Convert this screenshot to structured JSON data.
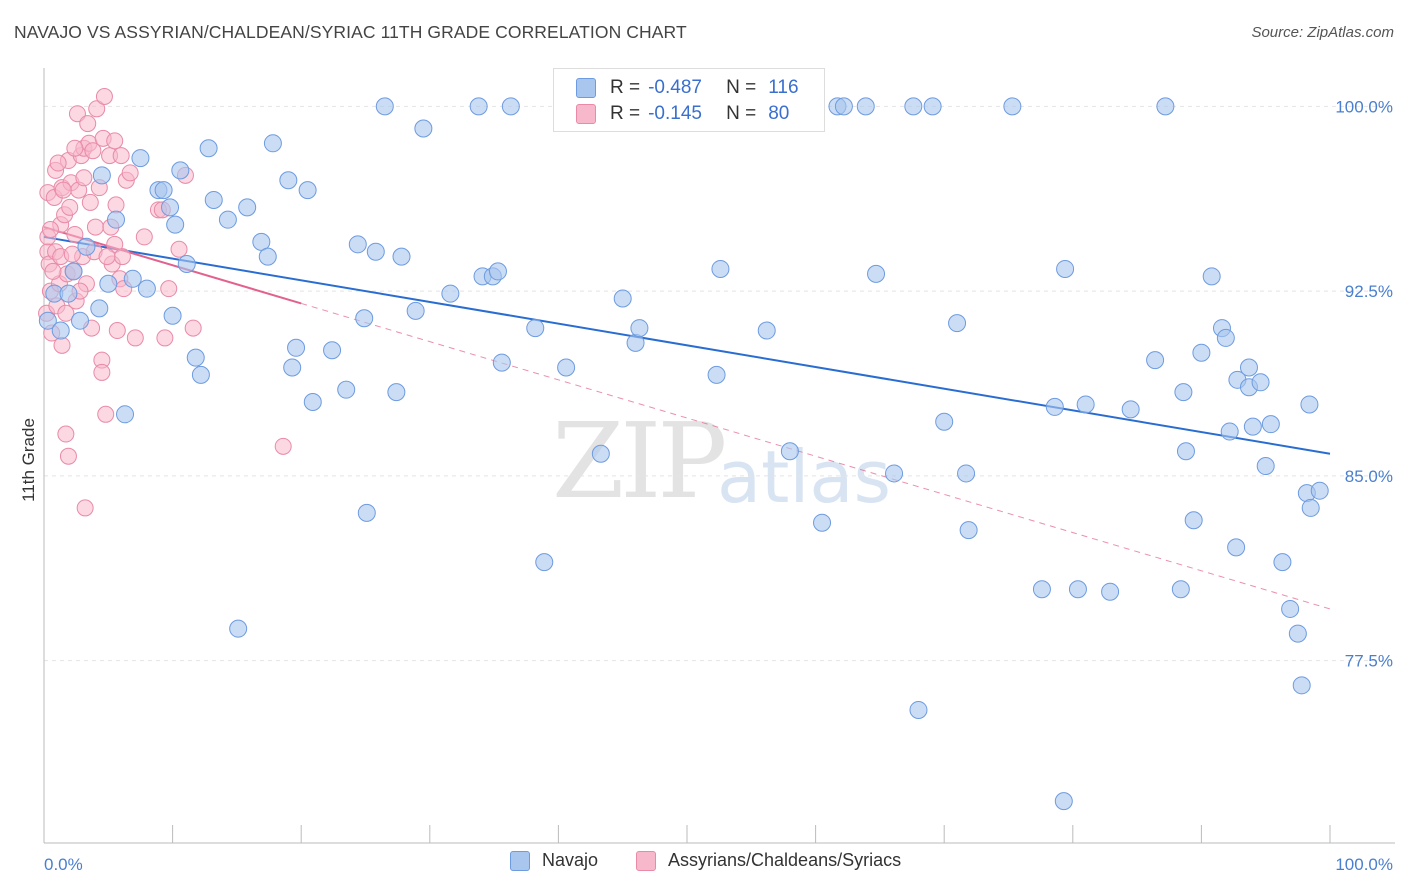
{
  "title": "NAVAJO VS ASSYRIAN/CHALDEAN/SYRIAC 11TH GRADE CORRELATION CHART",
  "source": "Source: ZipAtlas.com",
  "watermark": {
    "zip": "ZIP",
    "atlas": "atlas"
  },
  "legend": {
    "navajo": {
      "r_label": "R =",
      "r_value": "-0.487",
      "n_label": "N =",
      "n_value": "116"
    },
    "assyrian": {
      "r_label": "R =",
      "r_value": "-0.145",
      "n_label": "N =",
      "n_value": "80"
    }
  },
  "bottom_legend": {
    "navajo": "Navajo",
    "assyrian": "Assyrians/Chaldeans/Syriacs"
  },
  "colors": {
    "navajo_fill": "#a9c6ee",
    "navajo_stroke": "#6d9be0",
    "navajo_line": "#2a6dd1",
    "assyrian_fill": "#f7b8cb",
    "assyrian_stroke": "#e98aa8",
    "assyrian_line": "#e2618d",
    "grid": "#e4e4e4",
    "axis_label": "#4a7fcf"
  },
  "chart_data": {
    "type": "scatter",
    "title": "NAVAJO VS ASSYRIAN/CHALDEAN/SYRIAC 11TH GRADE CORRELATION CHART",
    "xlabel": "",
    "ylabel": "11th Grade",
    "xlim": [
      0,
      100
    ],
    "ylim": [
      70.1,
      101.8
    ],
    "y_ticks": [
      77.5,
      85.0,
      92.5,
      100.0
    ],
    "y_tick_labels": [
      "77.5%",
      "85.0%",
      "92.5%",
      "100.0%"
    ],
    "x_tick_labels": [
      "0.0%",
      "100.0%"
    ],
    "series": [
      {
        "name": "Navajo",
        "R": -0.487,
        "N": 116,
        "trend": {
          "x": [
            0,
            100
          ],
          "y": [
            94.7,
            85.9
          ]
        },
        "points": [
          [
            0.3,
            91.3
          ],
          [
            0.8,
            92.4
          ],
          [
            1.3,
            90.9
          ],
          [
            1.9,
            92.4
          ],
          [
            2.3,
            93.3
          ],
          [
            2.8,
            91.3
          ],
          [
            3.3,
            94.3
          ],
          [
            4.3,
            91.8
          ],
          [
            4.5,
            97.2
          ],
          [
            5.0,
            92.8
          ],
          [
            5.6,
            95.4
          ],
          [
            6.3,
            87.5
          ],
          [
            6.9,
            93.0
          ],
          [
            7.5,
            97.9
          ],
          [
            8.0,
            92.6
          ],
          [
            8.9,
            96.6
          ],
          [
            9.3,
            96.6
          ],
          [
            9.8,
            95.9
          ],
          [
            10.2,
            95.2
          ],
          [
            10.0,
            91.5
          ],
          [
            10.6,
            97.4
          ],
          [
            11.1,
            93.6
          ],
          [
            11.8,
            89.8
          ],
          [
            12.2,
            89.1
          ],
          [
            12.8,
            98.3
          ],
          [
            13.2,
            96.2
          ],
          [
            14.3,
            95.4
          ],
          [
            15.1,
            78.8
          ],
          [
            15.8,
            95.9
          ],
          [
            16.9,
            94.5
          ],
          [
            17.4,
            93.9
          ],
          [
            17.8,
            98.5
          ],
          [
            19.0,
            97.0
          ],
          [
            19.3,
            89.4
          ],
          [
            19.6,
            90.2
          ],
          [
            20.5,
            96.6
          ],
          [
            20.9,
            88.0
          ],
          [
            22.4,
            90.1
          ],
          [
            23.5,
            88.5
          ],
          [
            24.4,
            94.4
          ],
          [
            24.9,
            91.4
          ],
          [
            25.1,
            83.5
          ],
          [
            25.8,
            94.1
          ],
          [
            26.5,
            100.0
          ],
          [
            27.4,
            88.4
          ],
          [
            27.8,
            93.9
          ],
          [
            28.9,
            91.7
          ],
          [
            29.5,
            99.1
          ],
          [
            31.6,
            92.4
          ],
          [
            33.8,
            100.0
          ],
          [
            34.1,
            93.1
          ],
          [
            34.9,
            93.1
          ],
          [
            35.3,
            93.3
          ],
          [
            35.6,
            89.6
          ],
          [
            36.3,
            100.0
          ],
          [
            38.2,
            91.0
          ],
          [
            38.9,
            81.5
          ],
          [
            40.6,
            89.4
          ],
          [
            43.3,
            85.9
          ],
          [
            45.0,
            92.2
          ],
          [
            46.0,
            90.4
          ],
          [
            46.3,
            91.0
          ],
          [
            52.3,
            89.1
          ],
          [
            52.6,
            93.4
          ],
          [
            54.1,
            100.0
          ],
          [
            56.2,
            90.9
          ],
          [
            58.0,
            86.0
          ],
          [
            60.5,
            83.1
          ],
          [
            61.7,
            100.0
          ],
          [
            62.2,
            100.0
          ],
          [
            63.9,
            100.0
          ],
          [
            64.7,
            93.2
          ],
          [
            66.1,
            85.1
          ],
          [
            67.6,
            100.0
          ],
          [
            68.0,
            75.5
          ],
          [
            69.1,
            100.0
          ],
          [
            70.0,
            87.2
          ],
          [
            71.0,
            91.2
          ],
          [
            71.7,
            85.1
          ],
          [
            71.9,
            82.8
          ],
          [
            75.3,
            100.0
          ],
          [
            77.6,
            80.4
          ],
          [
            78.6,
            87.8
          ],
          [
            79.3,
            71.8
          ],
          [
            79.4,
            93.4
          ],
          [
            80.4,
            80.4
          ],
          [
            81.0,
            87.9
          ],
          [
            82.9,
            80.3
          ],
          [
            84.5,
            87.7
          ],
          [
            86.4,
            89.7
          ],
          [
            87.2,
            100.0
          ],
          [
            88.4,
            80.4
          ],
          [
            88.6,
            88.4
          ],
          [
            88.8,
            86.0
          ],
          [
            89.4,
            83.2
          ],
          [
            90.0,
            90.0
          ],
          [
            90.8,
            93.1
          ],
          [
            91.6,
            91.0
          ],
          [
            91.9,
            90.6
          ],
          [
            92.2,
            86.8
          ],
          [
            92.7,
            82.1
          ],
          [
            92.8,
            88.9
          ],
          [
            93.7,
            88.6
          ],
          [
            93.7,
            89.4
          ],
          [
            94.0,
            87.0
          ],
          [
            95.0,
            85.4
          ],
          [
            95.4,
            87.1
          ],
          [
            96.3,
            81.5
          ],
          [
            96.9,
            79.6
          ],
          [
            97.5,
            78.6
          ],
          [
            97.8,
            76.5
          ],
          [
            98.2,
            84.3
          ],
          [
            98.4,
            87.9
          ],
          [
            98.5,
            83.7
          ],
          [
            99.2,
            84.4
          ],
          [
            94.6,
            88.8
          ]
        ]
      },
      {
        "name": "Assyrians/Chaldeans/Syriacs",
        "R": -0.145,
        "N": 80,
        "trend": {
          "x": [
            0,
            20
          ],
          "y": [
            95.1,
            92.0
          ]
        },
        "trend_dashed": {
          "x": [
            20,
            100
          ],
          "y": [
            92.0,
            79.6
          ]
        },
        "points": [
          [
            0.2,
            91.6
          ],
          [
            0.3,
            94.1
          ],
          [
            0.3,
            94.7
          ],
          [
            0.3,
            96.5
          ],
          [
            0.4,
            93.6
          ],
          [
            0.5,
            92.5
          ],
          [
            0.6,
            90.8
          ],
          [
            0.8,
            96.3
          ],
          [
            0.9,
            94.1
          ],
          [
            0.9,
            97.4
          ],
          [
            1.0,
            91.9
          ],
          [
            1.2,
            92.8
          ],
          [
            1.3,
            93.9
          ],
          [
            1.3,
            95.2
          ],
          [
            1.4,
            90.3
          ],
          [
            1.4,
            96.7
          ],
          [
            1.6,
            95.6
          ],
          [
            1.7,
            86.7
          ],
          [
            1.7,
            91.6
          ],
          [
            1.8,
            93.2
          ],
          [
            1.9,
            85.8
          ],
          [
            1.9,
            97.8
          ],
          [
            2.1,
            96.9
          ],
          [
            2.3,
            93.3
          ],
          [
            2.4,
            94.8
          ],
          [
            2.5,
            92.1
          ],
          [
            2.6,
            99.7
          ],
          [
            2.7,
            96.6
          ],
          [
            2.9,
            98.0
          ],
          [
            3.0,
            93.9
          ],
          [
            3.1,
            98.3
          ],
          [
            3.1,
            97.1
          ],
          [
            3.2,
            83.7
          ],
          [
            3.3,
            92.8
          ],
          [
            3.4,
            99.3
          ],
          [
            3.5,
            98.5
          ],
          [
            3.6,
            96.1
          ],
          [
            3.7,
            91.0
          ],
          [
            3.8,
            98.2
          ],
          [
            4.0,
            95.1
          ],
          [
            4.1,
            99.9
          ],
          [
            4.3,
            96.7
          ],
          [
            4.5,
            89.7
          ],
          [
            4.5,
            89.2
          ],
          [
            4.6,
            98.7
          ],
          [
            4.7,
            100.4
          ],
          [
            4.8,
            87.5
          ],
          [
            5.1,
            98.0
          ],
          [
            5.2,
            95.1
          ],
          [
            5.3,
            93.6
          ],
          [
            5.5,
            98.6
          ],
          [
            5.5,
            94.4
          ],
          [
            5.6,
            96.0
          ],
          [
            5.7,
            90.9
          ],
          [
            5.9,
            93.0
          ],
          [
            6.0,
            98.0
          ],
          [
            6.1,
            93.9
          ],
          [
            6.4,
            97.0
          ],
          [
            6.7,
            97.3
          ],
          [
            7.1,
            90.6
          ],
          [
            8.9,
            95.8
          ],
          [
            9.2,
            95.8
          ],
          [
            9.4,
            90.6
          ],
          [
            9.7,
            92.6
          ],
          [
            10.5,
            94.2
          ],
          [
            11.0,
            97.2
          ],
          [
            11.6,
            91.0
          ],
          [
            18.6,
            86.2
          ],
          [
            2.2,
            94.0
          ],
          [
            1.5,
            96.6
          ],
          [
            0.7,
            93.3
          ],
          [
            2.8,
            92.5
          ],
          [
            3.9,
            94.1
          ],
          [
            1.1,
            97.7
          ],
          [
            2.0,
            95.9
          ],
          [
            0.5,
            95.0
          ],
          [
            6.2,
            92.6
          ],
          [
            4.9,
            93.9
          ],
          [
            7.8,
            94.7
          ],
          [
            2.4,
            98.3
          ]
        ]
      }
    ]
  }
}
